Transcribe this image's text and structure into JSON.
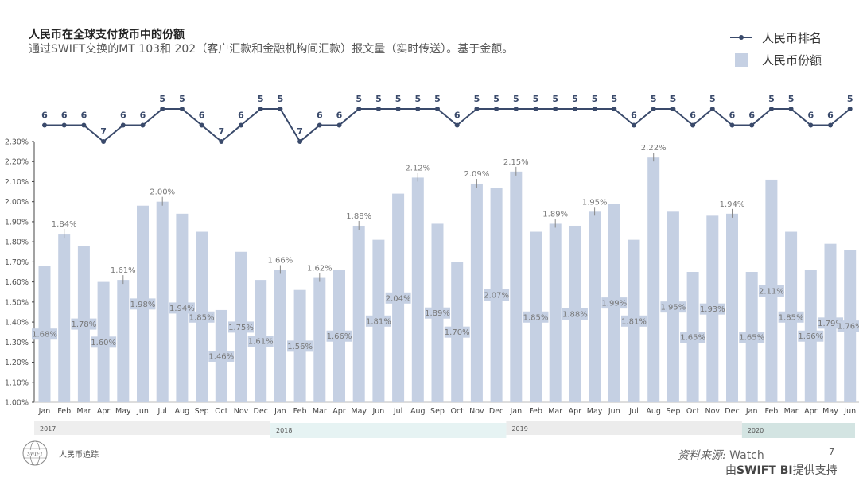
{
  "header": {
    "title": "人民币在全球支付货币中的份额",
    "subtitle": "通过SWIFT交换的MT 103和  202（客户汇款和金融机构间汇款）报文量（实时传送）。基于金额。"
  },
  "legend": {
    "rank_label": "人民币排名",
    "share_label": "人民币份额"
  },
  "colors": {
    "bar": "#c5d0e3",
    "line": "#3a4a6b",
    "label_text": "#777777",
    "year_2017": "#eeeeee",
    "year_2018": "#e6f3f3",
    "year_2019": "#ececec",
    "year_2020": "#d3e4e2"
  },
  "chart_data": {
    "type": "bar+line",
    "ylim": [
      1.0,
      2.3
    ],
    "yticks": [
      "1.00%",
      "1.10%",
      "1.20%",
      "1.30%",
      "1.40%",
      "1.50%",
      "1.60%",
      "1.70%",
      "1.80%",
      "1.90%",
      "2.00%",
      "2.10%",
      "2.20%",
      "2.30%"
    ],
    "categories": [
      "Jan",
      "Feb",
      "Mar",
      "Apr",
      "May",
      "Jun",
      "Jul",
      "Aug",
      "Sep",
      "Oct",
      "Nov",
      "Dec",
      "Jan",
      "Feb",
      "Mar",
      "Apr",
      "May",
      "Jun",
      "Jul",
      "Aug",
      "Sep",
      "Oct",
      "Nov",
      "Dec",
      "Jan",
      "Feb",
      "Mar",
      "Apr",
      "May",
      "Jun",
      "Jul",
      "Aug",
      "Sep",
      "Oct",
      "Nov",
      "Dec",
      "Jan",
      "Feb",
      "Mar",
      "Apr",
      "May",
      "Jun"
    ],
    "years": [
      {
        "label": "2017",
        "months": 12
      },
      {
        "label": "2018",
        "months": 12
      },
      {
        "label": "2019",
        "months": 12
      },
      {
        "label": "2020",
        "months": 6
      }
    ],
    "series": [
      {
        "name": "人民币份额",
        "type": "bar",
        "unit": "%",
        "values": [
          1.68,
          1.84,
          1.78,
          1.6,
          1.61,
          1.98,
          2.0,
          1.94,
          1.85,
          1.46,
          1.75,
          1.61,
          1.66,
          1.56,
          1.62,
          1.66,
          1.88,
          1.81,
          2.04,
          2.12,
          1.89,
          1.7,
          2.09,
          2.07,
          2.15,
          1.85,
          1.89,
          1.88,
          1.95,
          1.99,
          1.81,
          2.22,
          1.95,
          1.65,
          1.93,
          1.94,
          1.65,
          2.11,
          1.85,
          1.66,
          1.79,
          1.76
        ]
      },
      {
        "name": "人民币排名",
        "type": "line",
        "values": [
          6,
          6,
          6,
          7,
          6,
          6,
          5,
          5,
          6,
          7,
          6,
          5,
          5,
          7,
          6,
          6,
          5,
          5,
          5,
          5,
          5,
          6,
          5,
          5,
          5,
          5,
          5,
          5,
          5,
          5,
          6,
          5,
          5,
          6,
          5,
          6,
          6,
          5,
          5,
          6,
          6,
          5
        ]
      }
    ],
    "callout_indices": [
      1,
      4,
      6,
      12,
      14,
      16,
      19,
      22,
      24,
      26,
      28,
      31,
      35
    ]
  },
  "footer": {
    "tracker": "人民币追踪",
    "source_prefix": "资料来源:",
    "source_name": " Watch",
    "page": "7",
    "powered_prefix": "由",
    "powered_brand": "SWIFT BI",
    "powered_suffix": "提供支持",
    "logo_text": "SWIFT"
  }
}
